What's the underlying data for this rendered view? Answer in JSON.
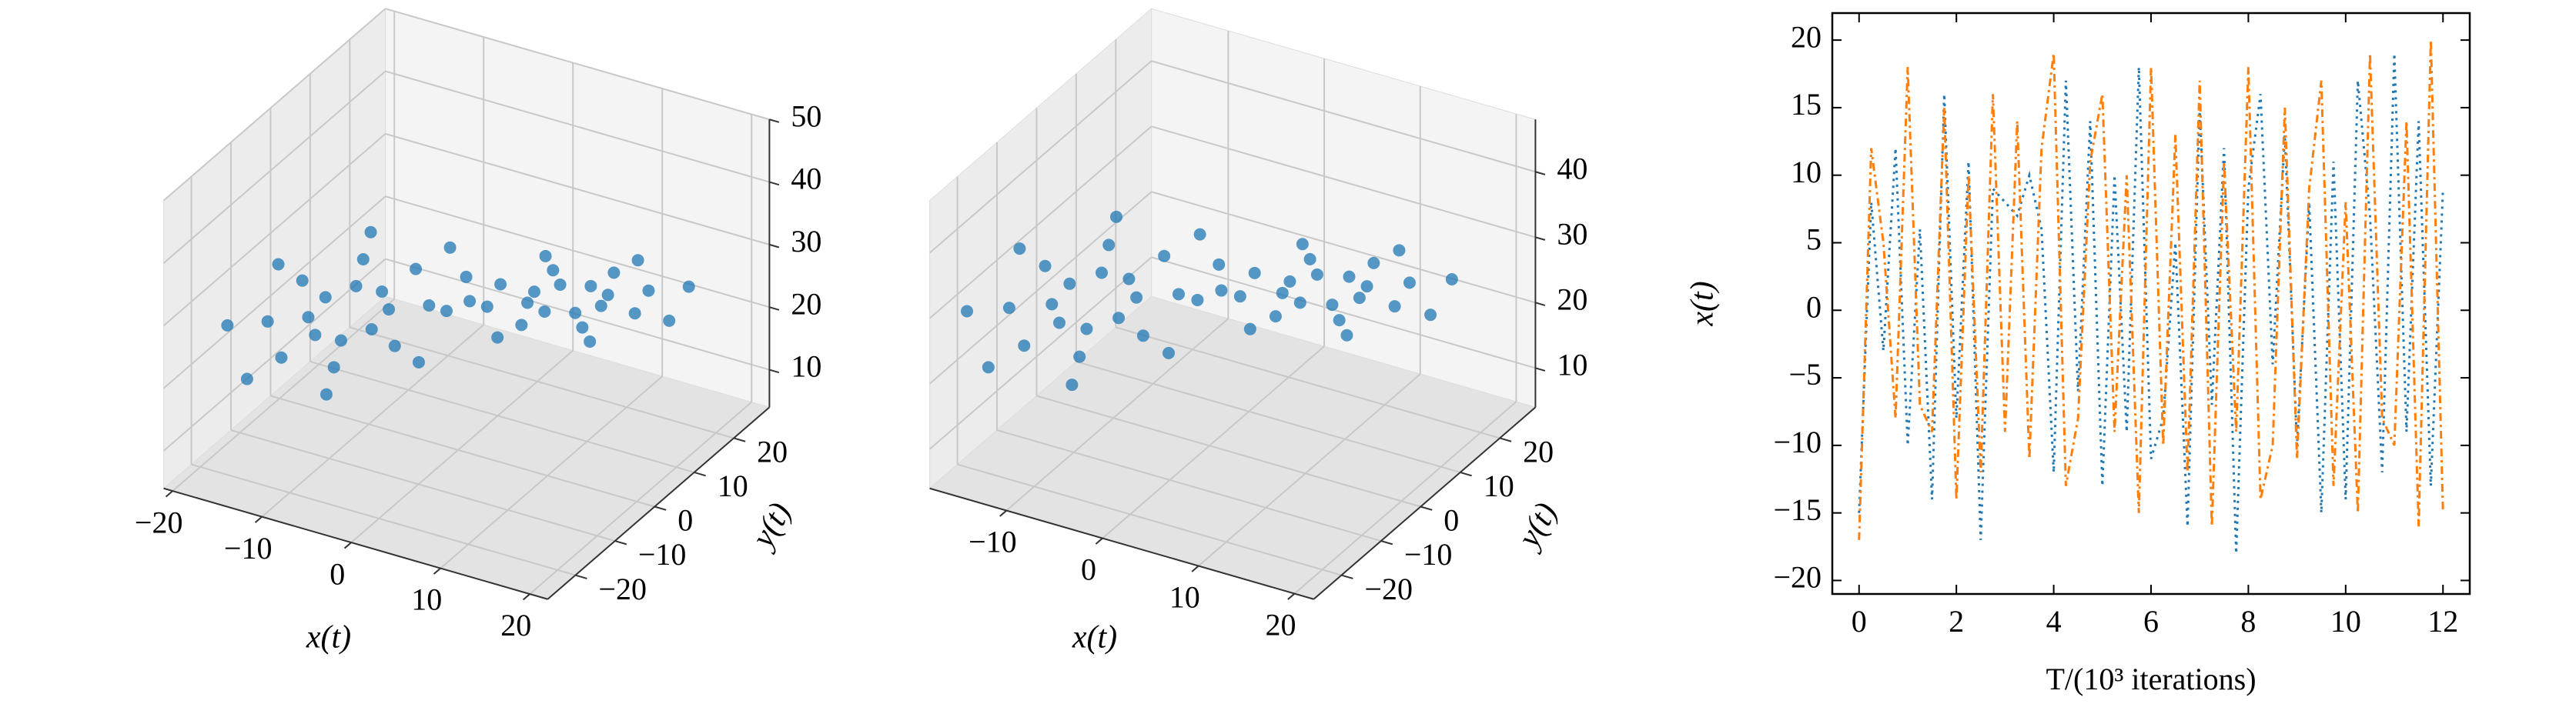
{
  "chart_data": [
    {
      "type": "scatter3d",
      "xlabel": "x(t)",
      "ylabel": "y(t)",
      "color": "#1f77b4",
      "xlim": [
        -21,
        22
      ],
      "ylim": [
        -27,
        29
      ],
      "zlim": [
        4,
        50
      ],
      "xticks": [
        {
          "value": -20,
          "label": "−20"
        },
        {
          "value": -10,
          "label": "−10"
        },
        0,
        10,
        20
      ],
      "yticks": [
        {
          "value": -20,
          "label": "−20"
        },
        {
          "value": -10,
          "label": "−10"
        },
        0,
        10,
        20
      ],
      "zticks": [
        10,
        20,
        30,
        40,
        50
      ],
      "x": [
        -5.5,
        -6.4,
        -8.5,
        -10.6,
        -11.5,
        -10.6,
        -8.5,
        -6.4,
        -2.5,
        -4.3,
        -8.5,
        -12.7,
        -14.5,
        -12.7,
        -8.5,
        -4.3,
        0.5,
        -2.1,
        -8.5,
        -14.9,
        -17.5,
        -14.9,
        -8.5,
        -2.1,
        5.5,
        6.4,
        8.5,
        10.6,
        11.5,
        10.6,
        8.5,
        6.4,
        2.5,
        4.3,
        8.5,
        12.7,
        14.5,
        12.7,
        8.5,
        4.3,
        -0.5,
        2.1,
        8.5,
        14.9,
        17.5,
        14.9,
        8.5,
        2.1
      ],
      "y": [
        -5.1,
        -4.8,
        -6.6,
        -9.6,
        -11.9,
        -12.2,
        -10.4,
        -7.4,
        -1.7,
        -1.0,
        -4.8,
        -10.7,
        -15.4,
        -16.0,
        -12.2,
        -6.3,
        1.8,
        2.7,
        -2.9,
        -11.8,
        -18.8,
        -19.7,
        -14.1,
        -5.2,
        5.1,
        4.8,
        6.6,
        9.6,
        11.9,
        12.2,
        10.4,
        7.4,
        1.7,
        1.0,
        4.8,
        10.7,
        15.4,
        16.0,
        12.2,
        6.3,
        -1.8,
        -2.7,
        2.9,
        11.8,
        18.8,
        19.7,
        14.1,
        5.2
      ],
      "z": [
        27,
        29.3,
        30.3,
        29.3,
        27,
        24.7,
        23.7,
        24.7,
        27,
        31.7,
        33.6,
        31.7,
        27,
        22.3,
        20.4,
        22.3,
        27,
        34,
        36.9,
        34,
        27,
        20,
        17.1,
        20,
        27,
        29.3,
        30.3,
        29.3,
        27,
        24.7,
        23.7,
        24.7,
        27,
        31.7,
        33.6,
        31.7,
        27,
        22.3,
        20.4,
        22.3,
        27,
        34,
        36.9,
        34,
        27,
        20,
        17.1,
        20
      ]
    },
    {
      "type": "scatter3d",
      "xlabel": "x(t)",
      "ylabel": "y(t)",
      "color": "#1f77b4",
      "xlim": [
        -18,
        22
      ],
      "ylim": [
        -27,
        29
      ],
      "zlim": [
        4,
        48
      ],
      "xticks": [
        {
          "value": -10,
          "label": "−10"
        },
        0,
        10,
        20
      ],
      "yticks": [
        {
          "value": -20,
          "label": "−20"
        },
        {
          "value": -10,
          "label": "−10"
        },
        0,
        10,
        20
      ],
      "zticks": [
        10,
        20,
        30,
        40
      ],
      "x": [
        -5.5,
        -6.4,
        -8.5,
        -10.6,
        -11.5,
        -10.6,
        -8.5,
        -6.4,
        -2.5,
        -4.3,
        -8.5,
        -12.7,
        -14.5,
        -12.7,
        -8.5,
        -4.3,
        0.5,
        -2.1,
        -8.5,
        -14.9,
        -17.5,
        -14.9,
        -8.5,
        -2.1,
        5.5,
        6.4,
        8.5,
        10.6,
        11.5,
        10.6,
        8.5,
        6.4,
        2.5,
        4.3,
        8.5,
        12.7,
        14.5,
        12.7,
        8.5,
        4.3,
        -0.5,
        2.1,
        8.5,
        14.9,
        17.5,
        14.9,
        8.5,
        2.1
      ],
      "y": [
        -5.1,
        -4.8,
        -6.6,
        -9.6,
        -11.9,
        -12.2,
        -10.4,
        -7.4,
        -1.7,
        -1.0,
        -4.8,
        -10.7,
        -15.4,
        -16.0,
        -12.2,
        -6.3,
        1.8,
        2.7,
        -2.9,
        -11.8,
        -18.8,
        -19.7,
        -14.1,
        -5.2,
        5.1,
        4.8,
        6.6,
        9.6,
        11.9,
        12.2,
        10.4,
        7.4,
        1.7,
        1.0,
        4.8,
        10.7,
        15.4,
        16.0,
        12.2,
        6.3,
        -1.8,
        -2.7,
        2.9,
        11.8,
        18.8,
        19.7,
        14.1,
        5.2
      ],
      "z": [
        27,
        29.3,
        30.3,
        29.3,
        27,
        24.7,
        23.7,
        24.7,
        27,
        31.7,
        33.6,
        31.7,
        27,
        22.3,
        20.4,
        22.3,
        27,
        34,
        36.9,
        34,
        27,
        20,
        17.1,
        20,
        27,
        29.3,
        30.3,
        29.3,
        27,
        24.7,
        23.7,
        24.7,
        27,
        31.7,
        33.6,
        31.7,
        27,
        22.3,
        20.4,
        22.3,
        27,
        34,
        36.9,
        34,
        27,
        20,
        17.1,
        20
      ]
    },
    {
      "type": "line",
      "xlabel": "T/(10³ iterations)",
      "ylabel": "x(t)",
      "xlim": [
        -0.55,
        12.55
      ],
      "ylim": [
        -21,
        22
      ],
      "xticks": [
        0,
        2,
        4,
        6,
        8,
        10,
        12
      ],
      "yticks": [
        {
          "value": -20,
          "label": "−20"
        },
        {
          "value": -15,
          "label": "−15"
        },
        {
          "value": -10,
          "label": "−10"
        },
        {
          "value": -5,
          "label": "−5"
        },
        0,
        5,
        10,
        15,
        20
      ],
      "x": [
        0,
        0.25,
        0.5,
        0.75,
        1,
        1.25,
        1.5,
        1.75,
        2,
        2.25,
        2.5,
        2.75,
        3,
        3.25,
        3.5,
        3.75,
        4,
        4.25,
        4.5,
        4.75,
        5,
        5.25,
        5.5,
        5.75,
        6,
        6.25,
        6.5,
        6.75,
        7,
        7.25,
        7.5,
        7.75,
        8,
        8.25,
        8.5,
        8.75,
        9,
        9.25,
        9.5,
        9.75,
        10,
        10.25,
        10.5,
        10.75,
        11,
        11.25,
        11.5,
        11.75,
        12
      ],
      "series": [
        {
          "color": "#1f77b4",
          "dash": "3,6",
          "values": [
            -15,
            8,
            -3,
            12,
            -10,
            6,
            -14,
            16,
            -8,
            11,
            -17,
            9,
            8,
            7,
            10,
            6,
            -12,
            17,
            -6,
            14,
            -13,
            10,
            -9,
            18,
            -11,
            -8,
            5,
            -16,
            15,
            -7,
            12,
            -18,
            9,
            16,
            -4,
            13,
            -10,
            8,
            -15,
            11,
            -14,
            17,
            7,
            -12,
            19,
            -9,
            14,
            -13,
            9
          ]
        },
        {
          "color": "#ff7f0e",
          "dash": "10,5,3,5",
          "values": [
            -17,
            12,
            5,
            -8,
            18,
            -7,
            -9,
            15,
            -14,
            10,
            -12,
            16,
            -9,
            14,
            -11,
            12,
            19,
            -13,
            -8,
            11,
            16,
            -9,
            10,
            -15,
            18,
            -10,
            13,
            -12,
            17,
            -16,
            11,
            -9,
            18,
            -14,
            -10,
            15,
            -11,
            9,
            17,
            -13,
            8,
            -15,
            19,
            -8,
            -10,
            14,
            -16,
            20,
            -15
          ]
        }
      ]
    }
  ]
}
